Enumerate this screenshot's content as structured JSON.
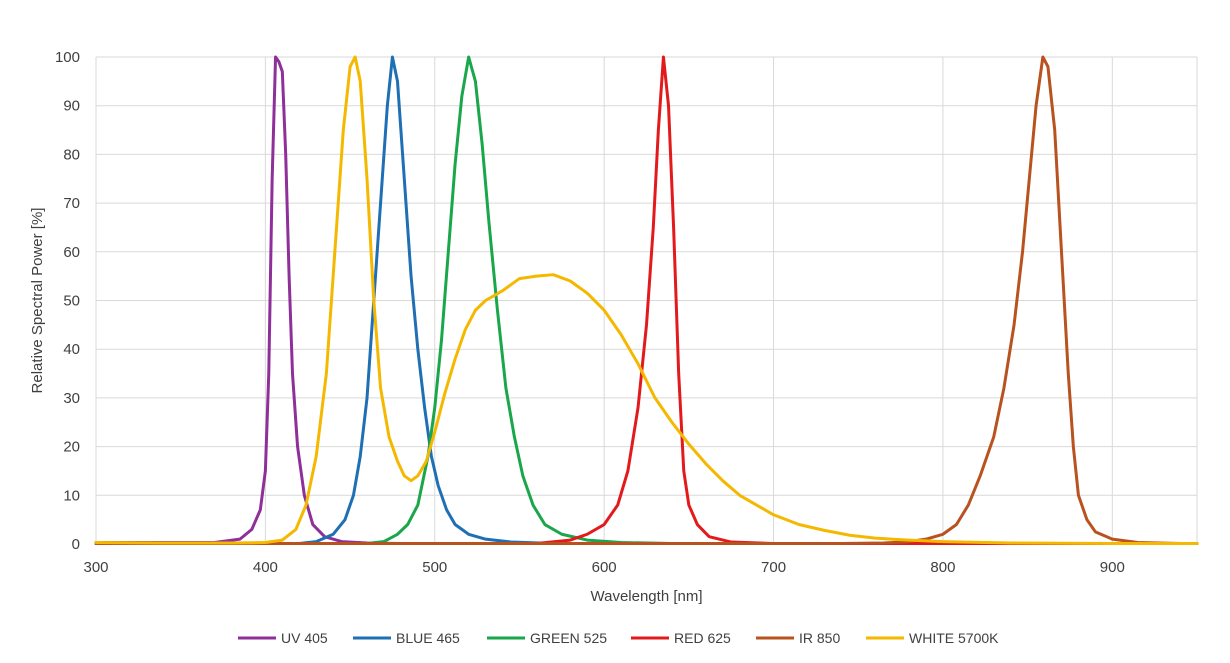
{
  "chart_data": {
    "type": "line",
    "title": "",
    "xlabel": "Wavelength [nm]",
    "ylabel": "Relative Spectral Power [%]",
    "xlim": [
      300,
      950
    ],
    "ylim": [
      0,
      100
    ],
    "x_ticks": [
      300,
      400,
      500,
      600,
      700,
      800,
      900
    ],
    "y_ticks": [
      0,
      10,
      20,
      30,
      40,
      50,
      60,
      70,
      80,
      90,
      100
    ],
    "grid": true,
    "legend_position": "bottom",
    "series": [
      {
        "name": "UV 405",
        "color": "#8e2f9a",
        "points": [
          [
            300,
            0.3
          ],
          [
            370,
            0.3
          ],
          [
            385,
            1
          ],
          [
            392,
            3
          ],
          [
            397,
            7
          ],
          [
            400,
            15
          ],
          [
            402,
            35
          ],
          [
            404,
            75
          ],
          [
            406,
            100
          ],
          [
            408,
            99
          ],
          [
            410,
            97
          ],
          [
            412,
            80
          ],
          [
            414,
            55
          ],
          [
            416,
            35
          ],
          [
            419,
            20
          ],
          [
            423,
            10
          ],
          [
            428,
            4
          ],
          [
            435,
            1.5
          ],
          [
            445,
            0.5
          ],
          [
            460,
            0.2
          ],
          [
            480,
            0.1
          ],
          [
            950,
            0.1
          ]
        ]
      },
      {
        "name": "BLUE 465",
        "color": "#1f6fb4",
        "points": [
          [
            300,
            0.1
          ],
          [
            420,
            0.1
          ],
          [
            430,
            0.5
          ],
          [
            440,
            2
          ],
          [
            447,
            5
          ],
          [
            452,
            10
          ],
          [
            456,
            18
          ],
          [
            460,
            30
          ],
          [
            464,
            50
          ],
          [
            468,
            70
          ],
          [
            472,
            90
          ],
          [
            475,
            100
          ],
          [
            478,
            95
          ],
          [
            482,
            75
          ],
          [
            486,
            55
          ],
          [
            490,
            40
          ],
          [
            494,
            28
          ],
          [
            498,
            18
          ],
          [
            502,
            12
          ],
          [
            507,
            7
          ],
          [
            512,
            4
          ],
          [
            520,
            2
          ],
          [
            530,
            1
          ],
          [
            545,
            0.4
          ],
          [
            570,
            0.1
          ],
          [
            950,
            0.1
          ]
        ]
      },
      {
        "name": "GREEN 525",
        "color": "#1aa64a",
        "points": [
          [
            300,
            0.1
          ],
          [
            460,
            0.1
          ],
          [
            470,
            0.5
          ],
          [
            478,
            2
          ],
          [
            484,
            4
          ],
          [
            490,
            8
          ],
          [
            496,
            18
          ],
          [
            500,
            28
          ],
          [
            504,
            42
          ],
          [
            508,
            60
          ],
          [
            512,
            78
          ],
          [
            516,
            92
          ],
          [
            520,
            100
          ],
          [
            524,
            95
          ],
          [
            528,
            82
          ],
          [
            532,
            66
          ],
          [
            537,
            48
          ],
          [
            542,
            32
          ],
          [
            547,
            22
          ],
          [
            552,
            14
          ],
          [
            558,
            8
          ],
          [
            565,
            4
          ],
          [
            575,
            2
          ],
          [
            590,
            0.8
          ],
          [
            610,
            0.3
          ],
          [
            640,
            0.1
          ],
          [
            950,
            0.1
          ]
        ]
      },
      {
        "name": "RED 625",
        "color": "#e31a1c",
        "points": [
          [
            300,
            0.1
          ],
          [
            560,
            0.1
          ],
          [
            580,
            0.8
          ],
          [
            590,
            2
          ],
          [
            600,
            4
          ],
          [
            608,
            8
          ],
          [
            614,
            15
          ],
          [
            620,
            28
          ],
          [
            625,
            45
          ],
          [
            629,
            65
          ],
          [
            632,
            85
          ],
          [
            635,
            100
          ],
          [
            638,
            90
          ],
          [
            641,
            65
          ],
          [
            644,
            35
          ],
          [
            647,
            15
          ],
          [
            650,
            8
          ],
          [
            655,
            4
          ],
          [
            662,
            1.5
          ],
          [
            675,
            0.4
          ],
          [
            700,
            0.1
          ],
          [
            950,
            0.1
          ]
        ]
      },
      {
        "name": "IR 850",
        "color": "#b8521e",
        "points": [
          [
            300,
            0.1
          ],
          [
            740,
            0.1
          ],
          [
            765,
            0.2
          ],
          [
            780,
            0.5
          ],
          [
            790,
            1
          ],
          [
            800,
            2
          ],
          [
            808,
            4
          ],
          [
            815,
            8
          ],
          [
            822,
            14
          ],
          [
            830,
            22
          ],
          [
            836,
            32
          ],
          [
            842,
            45
          ],
          [
            847,
            60
          ],
          [
            851,
            75
          ],
          [
            855,
            90
          ],
          [
            859,
            100
          ],
          [
            862,
            98
          ],
          [
            866,
            85
          ],
          [
            870,
            60
          ],
          [
            874,
            35
          ],
          [
            877,
            20
          ],
          [
            880,
            10
          ],
          [
            885,
            5
          ],
          [
            890,
            2.5
          ],
          [
            900,
            1
          ],
          [
            915,
            0.3
          ],
          [
            940,
            0.1
          ],
          [
            950,
            0.1
          ]
        ]
      },
      {
        "name": "WHITE 5700K",
        "color": "#f5b800",
        "points": [
          [
            300,
            0.3
          ],
          [
            340,
            0.2
          ],
          [
            380,
            0.2
          ],
          [
            400,
            0.3
          ],
          [
            410,
            0.8
          ],
          [
            418,
            3
          ],
          [
            424,
            8
          ],
          [
            430,
            18
          ],
          [
            436,
            35
          ],
          [
            441,
            60
          ],
          [
            446,
            85
          ],
          [
            450,
            98
          ],
          [
            453,
            100
          ],
          [
            456,
            95
          ],
          [
            460,
            75
          ],
          [
            464,
            50
          ],
          [
            468,
            32
          ],
          [
            473,
            22
          ],
          [
            478,
            17
          ],
          [
            482,
            14
          ],
          [
            486,
            13
          ],
          [
            490,
            14
          ],
          [
            495,
            17
          ],
          [
            500,
            23
          ],
          [
            506,
            31
          ],
          [
            512,
            38
          ],
          [
            518,
            44
          ],
          [
            524,
            48
          ],
          [
            530,
            50
          ],
          [
            540,
            52
          ],
          [
            550,
            54.5
          ],
          [
            560,
            55
          ],
          [
            570,
            55.3
          ],
          [
            580,
            54
          ],
          [
            590,
            51.5
          ],
          [
            600,
            48
          ],
          [
            610,
            43
          ],
          [
            620,
            37
          ],
          [
            630,
            30
          ],
          [
            640,
            25
          ],
          [
            650,
            20.5
          ],
          [
            660,
            16.5
          ],
          [
            670,
            13
          ],
          [
            680,
            10
          ],
          [
            690,
            8
          ],
          [
            700,
            6
          ],
          [
            715,
            4
          ],
          [
            730,
            2.8
          ],
          [
            745,
            1.8
          ],
          [
            760,
            1.2
          ],
          [
            780,
            0.8
          ],
          [
            800,
            0.5
          ],
          [
            840,
            0.2
          ],
          [
            900,
            0.1
          ],
          [
            950,
            0.1
          ]
        ]
      }
    ]
  }
}
